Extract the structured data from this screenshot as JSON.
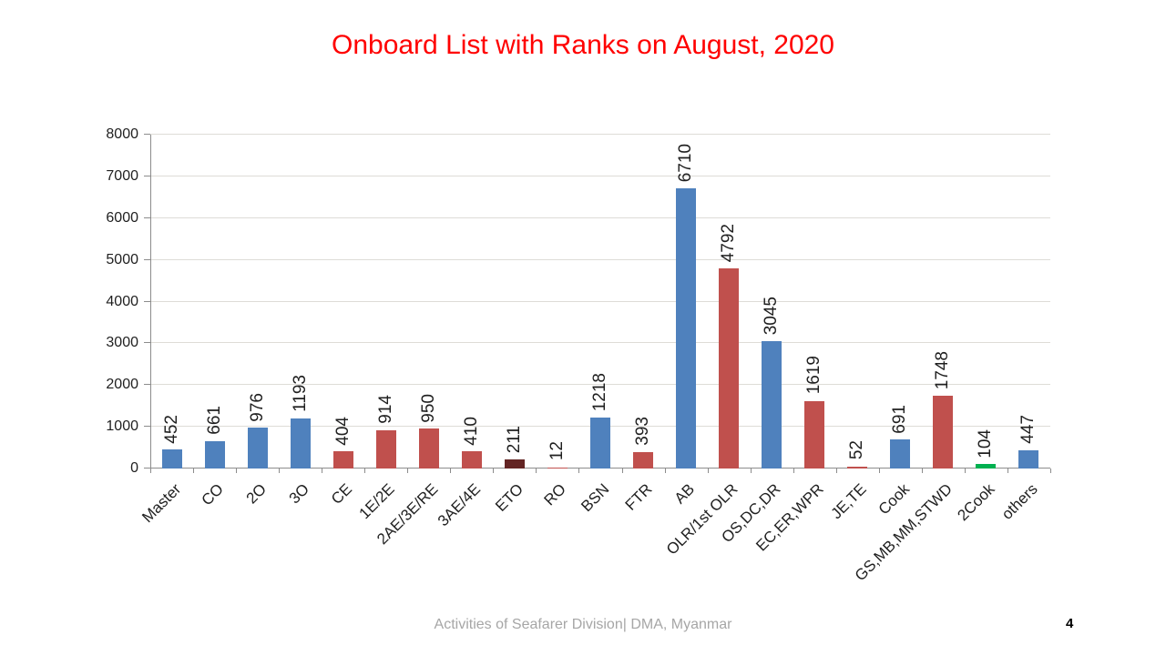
{
  "title": "Onboard List with Ranks on August, 2020",
  "title_color": "#FF0000",
  "footer": {
    "text": "Activities of Seafarer Division| DMA, Myanmar",
    "text_color": "#A6A6A6",
    "page_number": "4"
  },
  "chart_data": {
    "type": "bar",
    "title": "Onboard List with Ranks on August, 2020",
    "categories": [
      "Master",
      "CO",
      "2O",
      "3O",
      "CE",
      "1E/2E",
      "2AE/3E/RE",
      "3AE/4E",
      "ETO",
      "RO",
      "BSN",
      "FTR",
      "AB",
      "OLR/1st OLR",
      "OS,DC,DR",
      "EC,ER,WPR",
      "JE,TE",
      "Cook",
      "GS,MB,MM,STWD",
      "2Cook",
      "others"
    ],
    "values": [
      452,
      661,
      976,
      1193,
      404,
      914,
      950,
      410,
      211,
      12,
      1218,
      393,
      6710,
      4792,
      3045,
      1619,
      52,
      691,
      1748,
      104,
      447
    ],
    "bar_color_keys": [
      "blue",
      "blue",
      "blue",
      "blue",
      "red",
      "red",
      "red",
      "red",
      "dark_red",
      "red",
      "blue",
      "red",
      "blue",
      "red",
      "blue",
      "red",
      "red",
      "blue",
      "red",
      "green",
      "blue"
    ],
    "palette": {
      "blue": "#4F81BD",
      "red": "#C0504D",
      "dark_red": "#632423",
      "green": "#00B050"
    },
    "xlabel": "",
    "ylabel": "",
    "ylim": [
      0,
      8000
    ],
    "yticks": [
      0,
      1000,
      2000,
      3000,
      4000,
      5000,
      6000,
      7000,
      8000
    ],
    "grid": "horizontal",
    "legend": "none",
    "value_label_rotation": "vertical-bottom-to-top",
    "x_label_rotation_deg": 45,
    "axis_color": "#8C8C8C",
    "gridline_color": "#DEDCD7",
    "text_color": "#1F1F1F"
  }
}
